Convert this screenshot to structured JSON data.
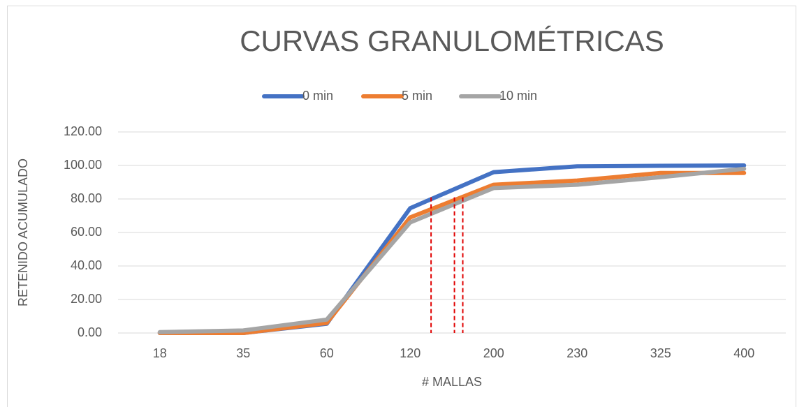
{
  "chart_data": {
    "type": "line",
    "title": "CURVAS GRANULOMÉTRICAS",
    "x_label": "# MALLAS",
    "y_label": "RETENIDO ACUMULADO",
    "categories": [
      "18",
      "35",
      "60",
      "120",
      "200",
      "230",
      "325",
      "400"
    ],
    "series": [
      {
        "name": "0 min",
        "color": "#4472c4",
        "values": [
          0,
          0,
          5.5,
          74.5,
          96,
          99.5,
          99.8,
          100
        ]
      },
      {
        "name": "5 min",
        "color": "#ed7d31",
        "values": [
          0,
          0,
          6,
          69,
          88.5,
          91,
          95.5,
          95.5
        ]
      },
      {
        "name": "10 min",
        "color": "#a5a5a5",
        "values": [
          0.5,
          1.5,
          8,
          66,
          86.5,
          88.5,
          93,
          98
        ]
      }
    ],
    "ylim": [
      0,
      120
    ],
    "yticks": [
      {
        "value": 0,
        "label": "0.00"
      },
      {
        "value": 20,
        "label": "20.00"
      },
      {
        "value": 40,
        "label": "40.00"
      },
      {
        "value": 60,
        "label": "60.00"
      },
      {
        "value": 80,
        "label": "80.00"
      },
      {
        "value": 100,
        "label": "100.00"
      },
      {
        "value": 120,
        "label": "120.00"
      }
    ],
    "grid": true,
    "legend": "top",
    "reference_lines": {
      "color": "#e00000",
      "lines": [
        {
          "position": 3.25,
          "top": 81
        },
        {
          "position": 3.53,
          "top": 81
        },
        {
          "position": 3.63,
          "top": 81
        }
      ]
    }
  }
}
